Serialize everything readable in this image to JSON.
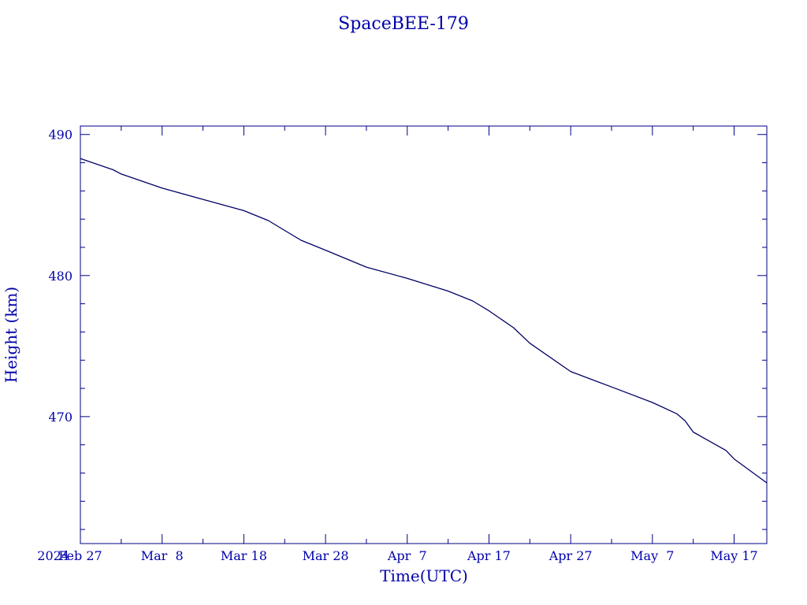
{
  "chart_data": {
    "type": "line",
    "title": "SpaceBEE-179",
    "xlabel": "Time(UTC)",
    "ylabel": "Height (km)",
    "year_label": "2024",
    "x_range": [
      "2024-02-27",
      "2024-05-21"
    ],
    "ylim": [
      461,
      490.6
    ],
    "grid": false,
    "colors": {
      "line": "#000066",
      "text": "#0000aa",
      "axes": "#000080"
    },
    "y_ticks": [
      {
        "value": 490,
        "label": "490"
      },
      {
        "value": 480,
        "label": "480"
      },
      {
        "value": 470,
        "label": "470"
      }
    ],
    "y_minor_ticks": [
      488,
      486,
      484,
      482,
      478,
      476,
      474,
      472,
      468,
      466,
      464,
      462
    ],
    "x_ticks": [
      {
        "date": "2024-02-27",
        "label": "Feb 27"
      },
      {
        "date": "2024-03-08",
        "label": "Mar  8"
      },
      {
        "date": "2024-03-18",
        "label": "Mar 18"
      },
      {
        "date": "2024-03-28",
        "label": "Mar 28"
      },
      {
        "date": "2024-04-07",
        "label": "Apr  7"
      },
      {
        "date": "2024-04-17",
        "label": "Apr 17"
      },
      {
        "date": "2024-04-27",
        "label": "Apr 27"
      },
      {
        "date": "2024-05-07",
        "label": "May  7"
      },
      {
        "date": "2024-05-17",
        "label": "May 17"
      }
    ],
    "x_minor_ticks": [
      "2024-03-03",
      "2024-03-13",
      "2024-03-23",
      "2024-04-02",
      "2024-04-12",
      "2024-04-22",
      "2024-05-02",
      "2024-05-12"
    ],
    "series": [
      {
        "x": [
          "2024-02-27",
          "2024-03-02",
          "2024-03-03",
          "2024-03-08",
          "2024-03-13",
          "2024-03-18",
          "2024-03-21",
          "2024-03-23",
          "2024-03-25",
          "2024-03-28",
          "2024-04-02",
          "2024-04-07",
          "2024-04-12",
          "2024-04-15",
          "2024-04-17",
          "2024-04-20",
          "2024-04-22",
          "2024-04-27",
          "2024-05-02",
          "2024-05-07",
          "2024-05-10",
          "2024-05-11",
          "2024-05-12",
          "2024-05-16",
          "2024-05-17",
          "2024-05-21"
        ],
        "y": [
          488.3,
          487.5,
          487.2,
          486.2,
          485.4,
          484.6,
          483.9,
          483.2,
          482.5,
          481.8,
          480.6,
          479.8,
          478.9,
          478.2,
          477.5,
          476.3,
          475.2,
          473.2,
          472.1,
          471.0,
          470.2,
          469.7,
          468.9,
          467.6,
          467.0,
          465.3
        ]
      }
    ]
  }
}
